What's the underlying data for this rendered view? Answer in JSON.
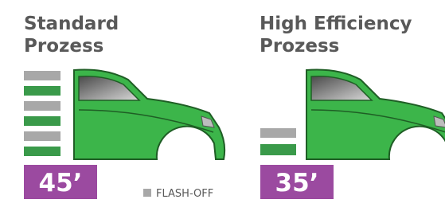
{
  "panels": [
    {
      "title": [
        "Standard",
        "Prozess"
      ],
      "time": "45’"
    },
    {
      "title": [
        "High Efficiency",
        "Prozess"
      ],
      "time": "35’"
    }
  ],
  "legend": {
    "label": "FLASH-OFF"
  }
}
